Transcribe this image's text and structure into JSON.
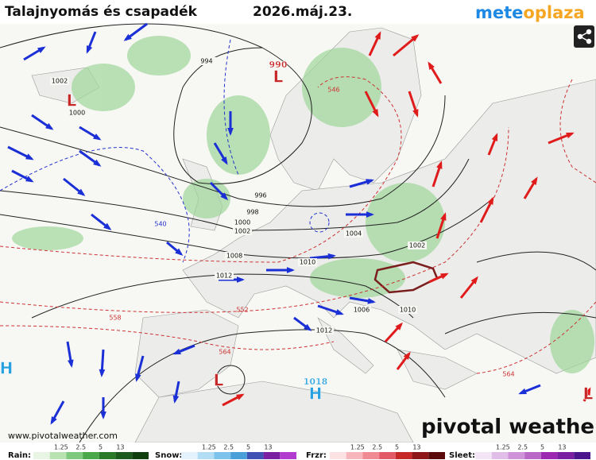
{
  "header": {
    "title": "Talajnyomás és csapadék",
    "date": "2026.máj.23.",
    "logo_left": "mete",
    "logo_right": "plaza"
  },
  "map": {
    "isobar_labels": [
      "994",
      "1002",
      "1000",
      "996",
      "998",
      "1000",
      "1002",
      "1004",
      "1002",
      "1008",
      "1010",
      "1012",
      "1006",
      "1010",
      "1012"
    ],
    "thickness_labels": [
      "546",
      "552",
      "558",
      "564",
      "564",
      "540"
    ],
    "centers": [
      {
        "value": "990",
        "letter": "L"
      },
      {
        "letter": "L"
      },
      {
        "letter": "L"
      },
      {
        "value": "1018",
        "letter": "H"
      },
      {
        "letter": "H"
      },
      {
        "letter": "L"
      }
    ]
  },
  "footer": {
    "website": "www.pivotalweather.com",
    "brand": "pivotal weather"
  },
  "legend": [
    {
      "label": "Rain:",
      "ticks": [
        1.25,
        2.5,
        5,
        13
      ]
    },
    {
      "label": "Snow:",
      "ticks": [
        1.25,
        2.5,
        5,
        13
      ]
    },
    {
      "label": "Frzr:",
      "ticks": [
        1.25,
        2.5,
        5,
        13
      ]
    },
    {
      "label": "Sleet:",
      "ticks": [
        1.25,
        2.5,
        5,
        13
      ]
    }
  ]
}
